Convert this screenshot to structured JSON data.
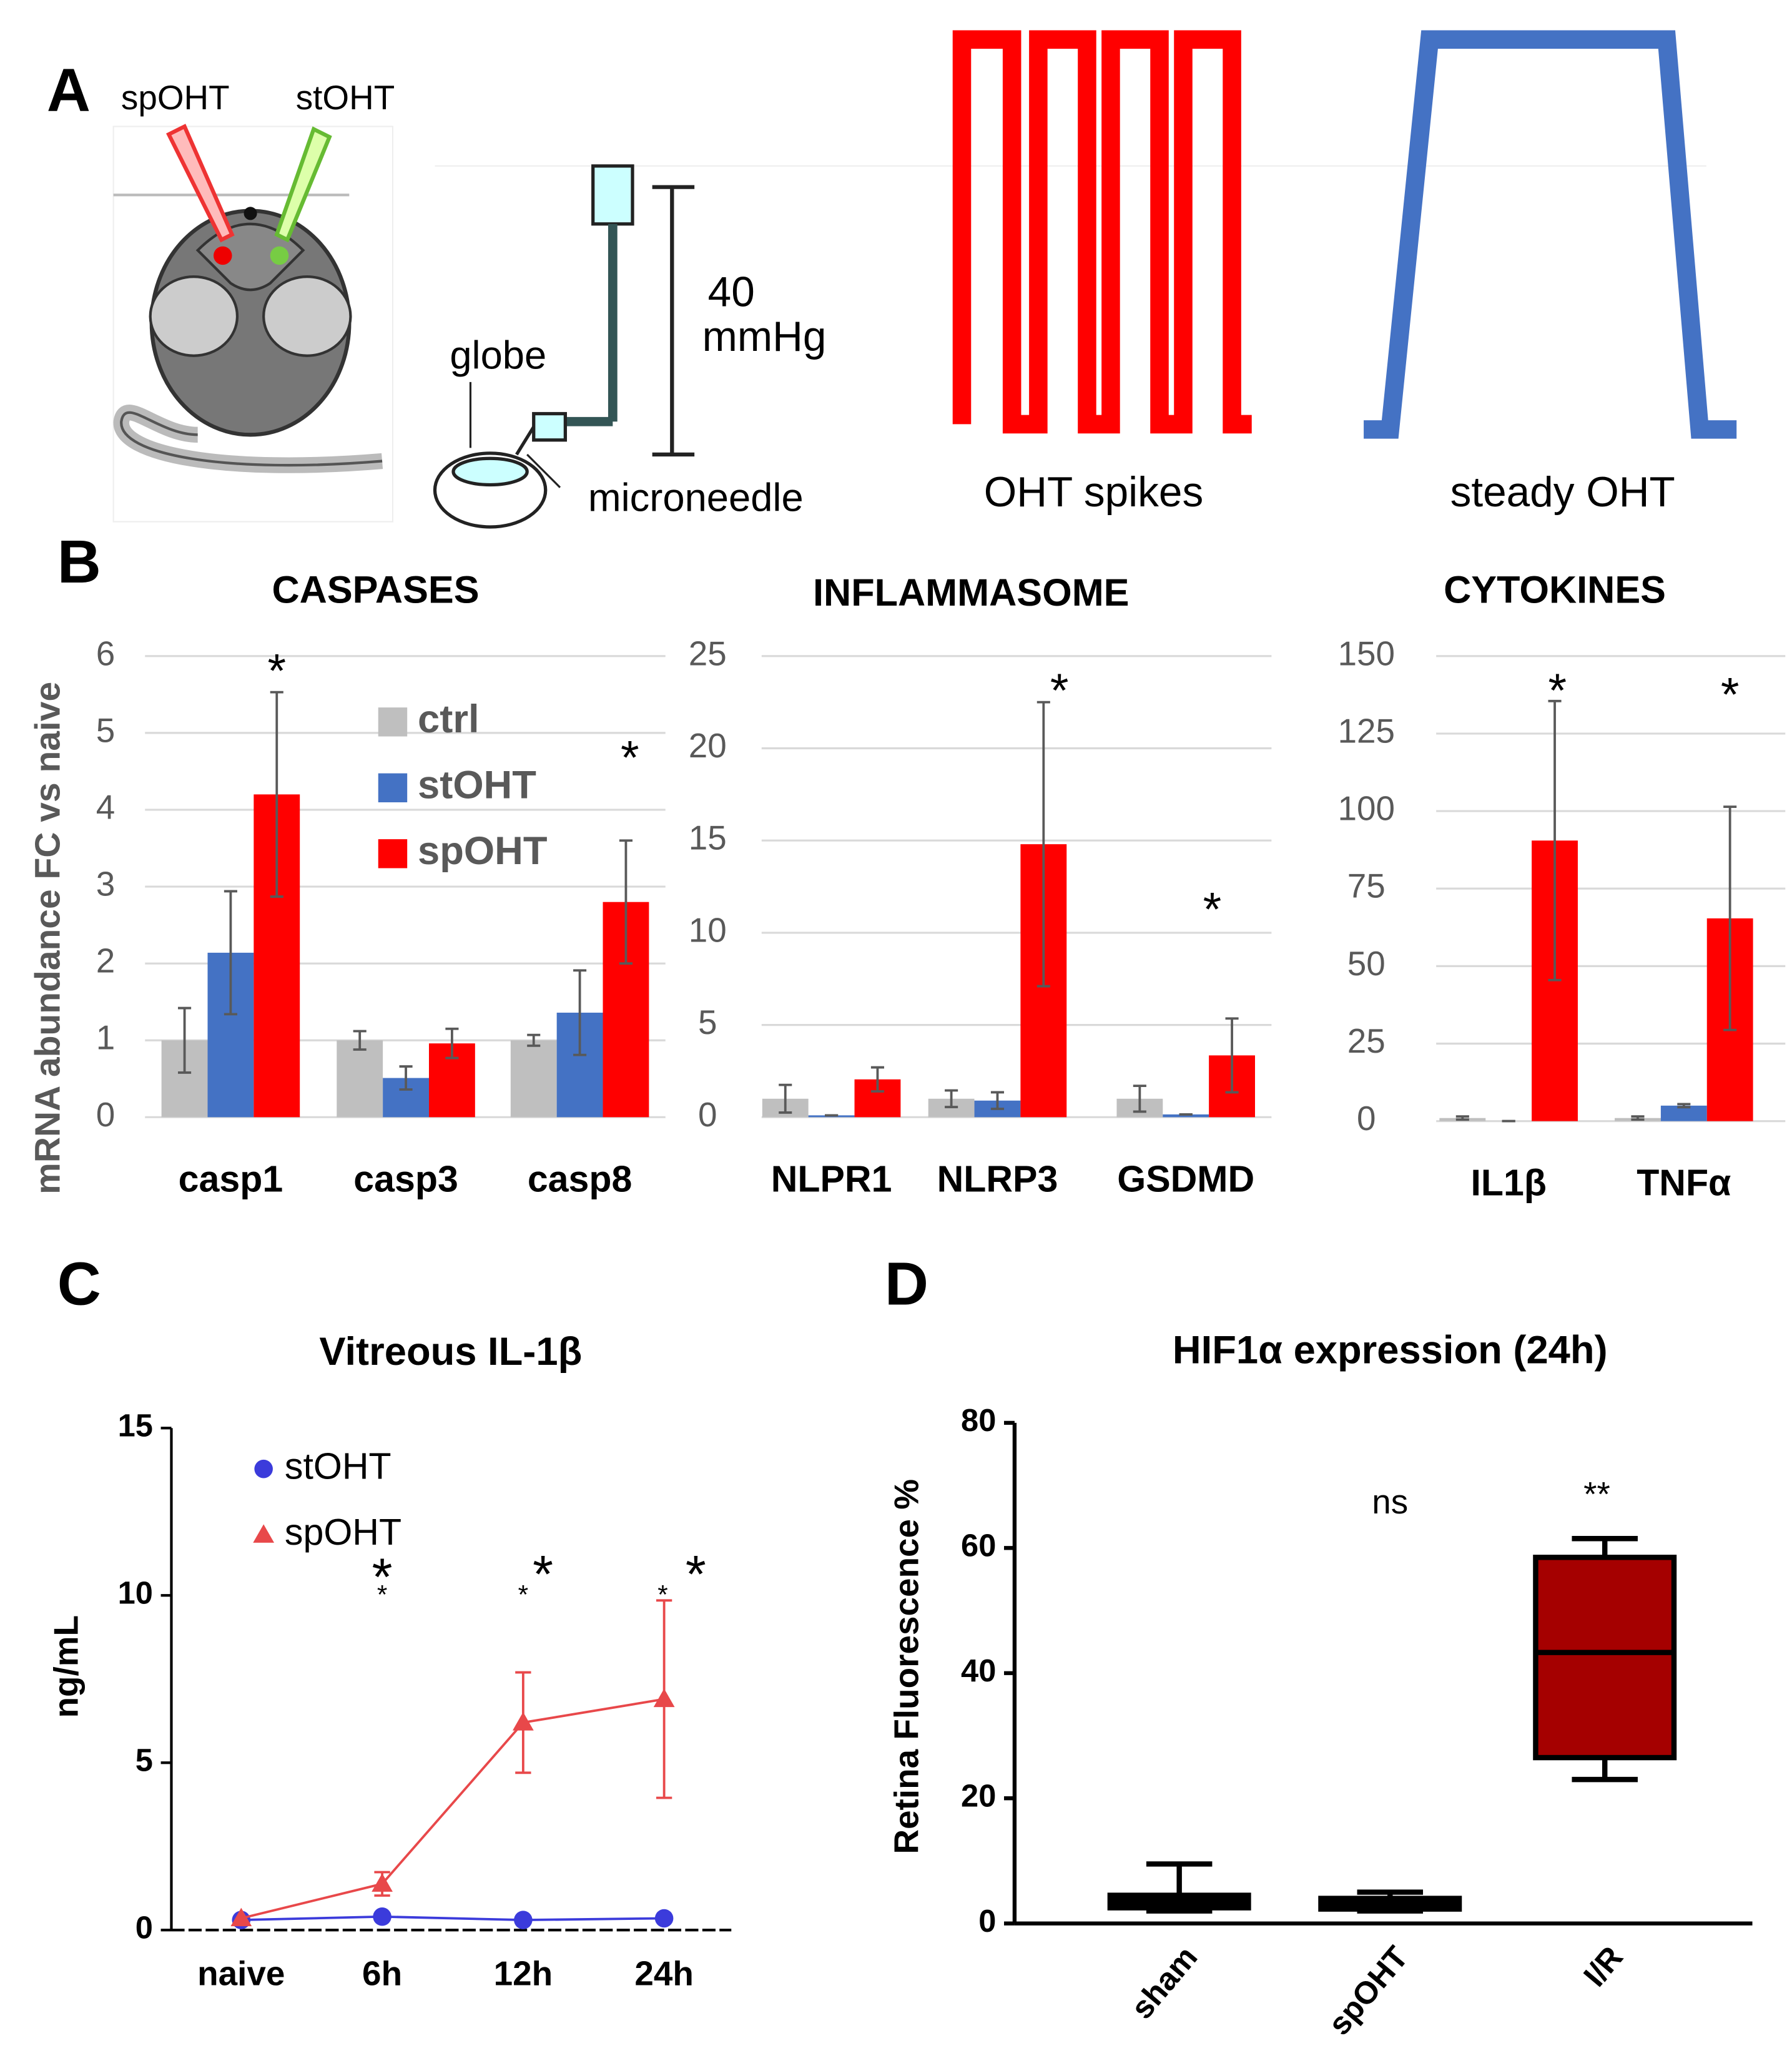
{
  "panel_labels": [
    "A",
    "B",
    "C",
    "D"
  ],
  "panel_a": {
    "sp_label": "spOHT",
    "st_label": "stOHT",
    "pressure_value": "40",
    "pressure_unit": "mmHg",
    "globe": "globe",
    "needle": "microneedle",
    "spikes": "OHT spikes",
    "steady": "steady OHT"
  },
  "chart_data": [
    {
      "type": "bar",
      "title": "CASPASES",
      "ylabel": "mRNA abundance FC vs naive",
      "categories": [
        "casp1",
        "casp3",
        "casp8"
      ],
      "series": [
        {
          "name": "ctrl",
          "color": "#bfbfbf",
          "values": [
            1,
            1,
            1
          ],
          "errors": [
            0.42,
            0.12,
            0.07
          ]
        },
        {
          "name": "stOHT",
          "color": "#4472c4",
          "values": [
            2.14,
            0.51,
            1.36
          ],
          "errors": [
            0.8,
            0.15,
            0.55
          ]
        },
        {
          "name": "spOHT",
          "color": "#ff0000",
          "values": [
            4.2,
            0.96,
            2.8
          ],
          "errors": [
            1.33,
            0.19,
            0.8
          ]
        }
      ],
      "ylim": [
        0,
        6
      ],
      "yticks": [
        0,
        1,
        2,
        3,
        4,
        5,
        6
      ],
      "grid": true,
      "legend": "upper center",
      "annotations": [
        "*",
        "*"
      ]
    },
    {
      "type": "bar",
      "title": "INFLAMMASOME",
      "categories": [
        "NLPR1",
        "NLRP3",
        "GSDMD"
      ],
      "series": [
        {
          "color": "#bfbfbf",
          "values": [
            1,
            1,
            1
          ],
          "errors": [
            0.75,
            0.45,
            0.7
          ]
        },
        {
          "color": "#4472c4",
          "values": [
            0.1,
            0.9,
            0.15
          ],
          "errors": [
            0,
            0.45,
            0
          ]
        },
        {
          "color": "#ff0000",
          "values": [
            2.05,
            14.8,
            3.35
          ],
          "errors": [
            0.65,
            7.7,
            2
          ]
        }
      ],
      "ylim": [
        0,
        25
      ],
      "yticks": [
        0,
        5,
        10,
        15,
        20,
        25
      ],
      "grid": true,
      "annotations": [
        "*",
        "*"
      ]
    },
    {
      "type": "bar",
      "title": "CYTOKINES",
      "categories": [
        "IL1β",
        "TNFα"
      ],
      "series": [
        {
          "color": "#bfbfbf",
          "values": [
            1,
            1
          ],
          "errors": [
            0.5,
            0.5
          ]
        },
        {
          "color": "#4472c4",
          "values": [
            0,
            5
          ],
          "errors": [
            0,
            0.5
          ]
        },
        {
          "color": "#ff0000",
          "values": [
            90.5,
            65.4
          ],
          "errors": [
            45,
            36
          ]
        }
      ],
      "ylim": [
        0,
        150
      ],
      "yticks": [
        0,
        25,
        50,
        75,
        100,
        125,
        150
      ],
      "grid": true,
      "annotations": [
        "*",
        "*"
      ]
    },
    {
      "type": "line",
      "title": "Vitreous IL-1β",
      "ylabel": "ng/mL",
      "categories": [
        "naive",
        "6h",
        "12h",
        "24h"
      ],
      "series": [
        {
          "name": "stOHT",
          "color": "#3b3bdb",
          "marker": "circle",
          "values": [
            0.3,
            0.4,
            0.3,
            0.35
          ]
        },
        {
          "name": "spOHT",
          "color": "#e8484a",
          "marker": "triangle",
          "values": [
            0.35,
            1.38,
            6.2,
            6.9
          ],
          "errors": [
            0,
            0.35,
            1.5,
            2.95
          ]
        }
      ],
      "ylim": [
        0,
        15
      ],
      "yticks": [
        0,
        5,
        10,
        15
      ],
      "legend": "upper left",
      "annotations": [
        "*",
        "*",
        "*",
        "*",
        "*",
        "*"
      ]
    },
    {
      "type": "box",
      "title": "HIF1α expression (24h)",
      "ylabel": "Retina Fluorescence %",
      "categories": [
        "sham",
        "spOHT",
        "I/R"
      ],
      "colors": [
        "#000000",
        "#000000",
        "#a50000"
      ],
      "min": [
        2,
        2,
        23
      ],
      "q1": [
        2.5,
        2.3,
        26.5
      ],
      "median": [
        3.5,
        3,
        43.3
      ],
      "q3": [
        4.5,
        4,
        58.5
      ],
      "max": [
        9.5,
        5,
        61.5
      ],
      "ylim": [
        0,
        80
      ],
      "yticks": [
        0,
        20,
        40,
        60,
        80
      ],
      "annotations": [
        "ns",
        "**"
      ]
    }
  ]
}
